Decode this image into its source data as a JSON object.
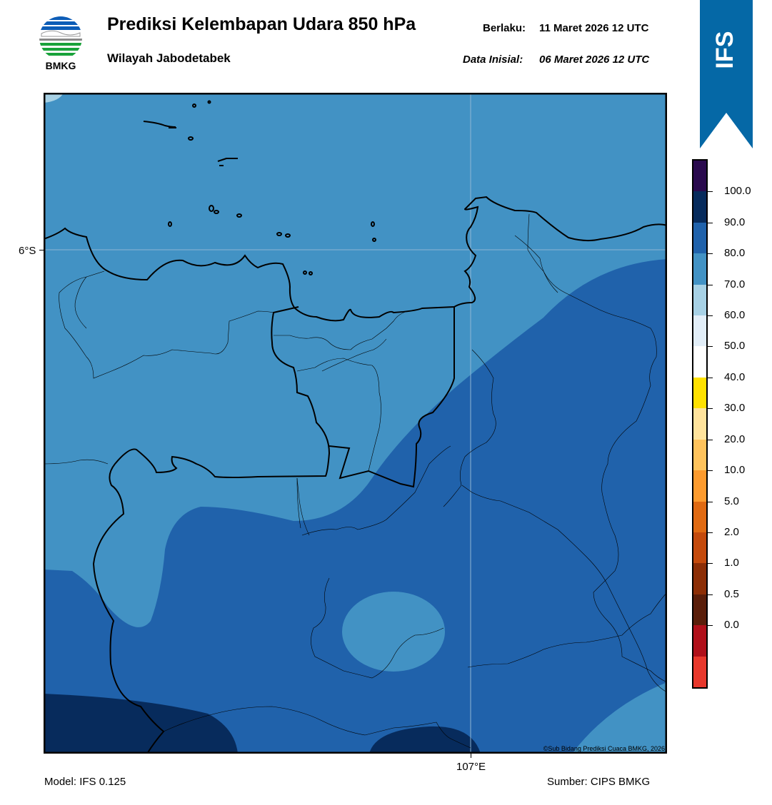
{
  "header": {
    "logo_text": "BMKG",
    "title": "Prediksi Kelembapan Udara 850 hPa",
    "subtitle": "Wilayah Jabodetabek",
    "valid_label": "Berlaku:",
    "valid_value": "11 Maret 2026 12 UTC",
    "init_label": "Data Inisial:",
    "init_value": "06 Maret 2026 12 UTC"
  },
  "banner": {
    "text": "IFS",
    "color": "#0568a6"
  },
  "map": {
    "lat_label": "6°S",
    "lon_label": "107°E",
    "credit": "©Sub Bidang Prediksi Cuaca BMKG, 2026"
  },
  "colorbar": {
    "labels": [
      "100.0",
      "90.0",
      "80.0",
      "70.0",
      "60.0",
      "50.0",
      "40.0",
      "30.0",
      "20.0",
      "10.0",
      "5.0",
      "2.0",
      "1.0",
      "0.5",
      "0.0"
    ],
    "colors_top_to_bottom": [
      "#2a0a4e",
      "#072b5c",
      "#2062ab",
      "#4292c4",
      "#a7d1e5",
      "#e2eef8",
      "#ffffff",
      "#ffe100",
      "#ffe39c",
      "#ffc35c",
      "#fd9b2e",
      "#e06a12",
      "#c44a0c",
      "#8c2e06",
      "#5a1e0a",
      "#b0101a",
      "#e8382c"
    ]
  },
  "footer": {
    "model": "Model: IFS 0.125",
    "source": "Sumber: CIPS BMKG"
  }
}
